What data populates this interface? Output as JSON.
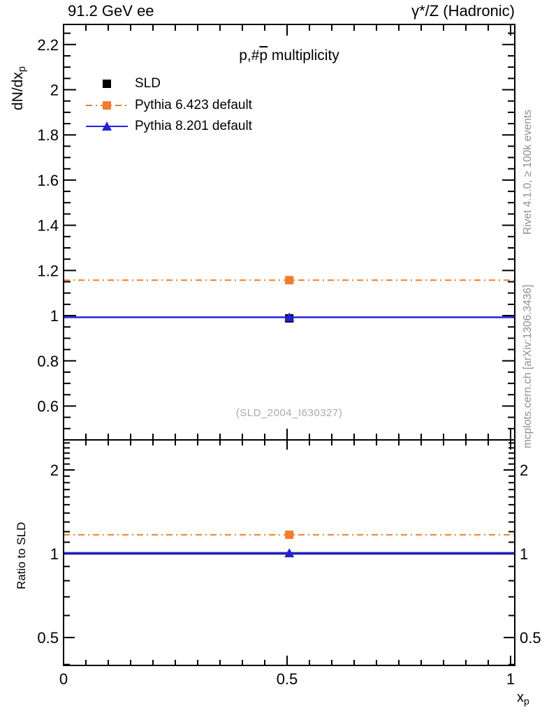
{
  "header": {
    "left": "91.2 GeV ee",
    "right": "γ*/Z (Hadronic)"
  },
  "title": {
    "prefix": "p,#",
    "overline": "p",
    "suffix": " multiplicity"
  },
  "watermark": "(SLD_2004_I630327)",
  "side_notes": {
    "top": "Rivet 4.1.0, ≥ 100k events",
    "bottom": "mcplots.cern.ch [arXiv:1306.3436]"
  },
  "axes": {
    "main": {
      "ylabel_main": "dN/dx",
      "ylabel_sub": "p"
    },
    "ratio": {
      "ylabel": "Ratio to SLD"
    },
    "x": {
      "label_main": "x",
      "label_sub": "p"
    }
  },
  "colors": {
    "sld": "#000000",
    "pythia6": "#f07d2e",
    "pythia8": "#2222d8",
    "frame": "#000000",
    "gray_text": "#8f8f8f",
    "watermark": "#aaaaaa"
  },
  "legend": [
    {
      "label": "SLD",
      "marker": "square",
      "color": "#000000",
      "line": "none"
    },
    {
      "label": "Pythia 6.423 default",
      "marker": "square",
      "color": "#f07d2e",
      "line": "dashdot"
    },
    {
      "label": "Pythia 8.201 default",
      "marker": "triangle",
      "color": "#2222d8",
      "line": "solid"
    }
  ],
  "chart_data": [
    {
      "type": "line",
      "panel": "main",
      "title": "p,#p̄ multiplicity",
      "xlabel": "x_p",
      "ylabel": "dN/dx_p",
      "xlim": [
        0,
        1.0094
      ],
      "ylim": [
        0.45,
        2.289
      ],
      "x_major_ticks": [
        0,
        0.5,
        1
      ],
      "x_tick_labels": [
        "0",
        "0.5",
        "1"
      ],
      "x_minor_step": 0.05,
      "y_major_ticks": [
        0.6,
        0.8,
        1.0,
        1.2,
        1.4,
        1.6,
        1.8,
        2.0,
        2.2
      ],
      "y_tick_labels": [
        "0.6",
        "0.8",
        "1",
        "1.2",
        "1.4",
        "1.6",
        "1.8",
        "2",
        "2.2"
      ],
      "y_minor_step": 0.05,
      "grid": false,
      "legend_position": "top-left",
      "series": [
        {
          "name": "SLD",
          "style": "marker-only",
          "marker": "square",
          "color": "#000000",
          "points": [
            {
              "x": 0.505,
              "y": 0.988
            }
          ]
        },
        {
          "name": "Pythia 6.423 default",
          "style": "dashdot-line",
          "color": "#f07d2e",
          "y": 1.157,
          "x_span": [
            0,
            1.0094
          ],
          "marker": "square",
          "marker_x": 0.505
        },
        {
          "name": "Pythia 8.201 default",
          "style": "solid-line",
          "color": "#2222d8",
          "y": 0.993,
          "x_span": [
            0,
            1.0094
          ],
          "marker": "triangle",
          "marker_x": 0.505
        }
      ]
    },
    {
      "type": "line",
      "panel": "ratio",
      "ylabel": "Ratio to SLD",
      "yscale": "log",
      "xlim": [
        0,
        1.0094
      ],
      "ylim": [
        0.397,
        2.564
      ],
      "y_major_ticks": [
        0.5,
        1,
        2
      ],
      "y_tick_labels": [
        "0.5",
        "1",
        "2"
      ],
      "y_minor_ticks": [
        0.4,
        0.6,
        0.7,
        0.8,
        0.9,
        1.1,
        1.2,
        1.3,
        1.4,
        1.5,
        1.6,
        1.7,
        1.8,
        1.9,
        2.1,
        2.2,
        2.3,
        2.4,
        2.5
      ],
      "labels_both_sides": true,
      "series": [
        {
          "name": "SLD reference",
          "style": "solid-line",
          "color": "#000000",
          "y": 1.0,
          "x_span": [
            0,
            1.0094
          ]
        },
        {
          "name": "Pythia 6.423 default",
          "style": "dashdot-line",
          "color": "#f07d2e",
          "y": 1.17,
          "x_span": [
            0,
            1.0094
          ],
          "marker": "square",
          "marker_x": 0.505
        },
        {
          "name": "Pythia 8.201 default",
          "style": "solid-line",
          "color": "#2222d8",
          "y": 1.005,
          "x_span": [
            0,
            1.0094
          ],
          "marker": "triangle",
          "marker_x": 0.505
        }
      ]
    }
  ]
}
